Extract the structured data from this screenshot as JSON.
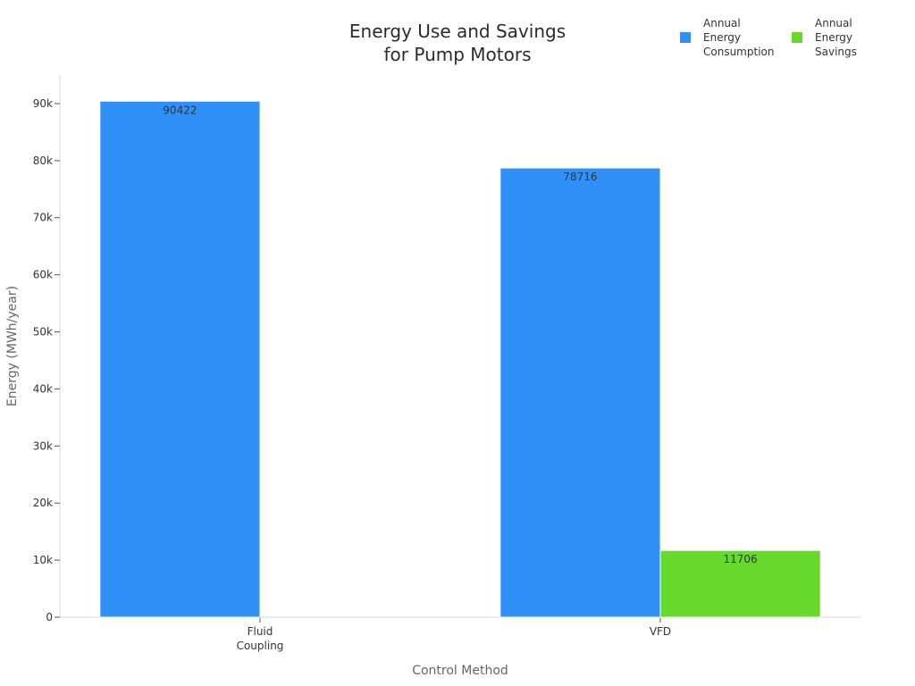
{
  "chart_data": {
    "type": "bar",
    "title_line1": "Energy Use and Savings",
    "title_line2": "for Pump Motors",
    "xlabel": "Control Method",
    "ylabel": "Energy (MWh/year)",
    "categories": [
      "Fluid Coupling",
      "VFD"
    ],
    "category_lines": [
      [
        "Fluid",
        "Coupling"
      ],
      [
        "VFD"
      ]
    ],
    "ylim": [
      0,
      95000
    ],
    "yticks": [
      0,
      10000,
      20000,
      30000,
      40000,
      50000,
      60000,
      70000,
      80000,
      90000
    ],
    "ytick_labels": [
      "0",
      "10k",
      "20k",
      "30k",
      "40k",
      "50k",
      "60k",
      "70k",
      "80k",
      "90k"
    ],
    "legend_position": "top-right",
    "series": [
      {
        "name": "Annual Energy Consumption",
        "legend_lines": [
          "Annual",
          "Energy",
          "Consumption"
        ],
        "color": "#2f90f8",
        "values": [
          90422,
          78716
        ],
        "labels": [
          "90422",
          "78716"
        ]
      },
      {
        "name": "Annual Energy Savings",
        "legend_lines": [
          "Annual",
          "Energy",
          "Savings"
        ],
        "color": "#66d92a",
        "values": [
          null,
          11706
        ],
        "labels": [
          "",
          "11706"
        ]
      }
    ],
    "grid": false
  }
}
